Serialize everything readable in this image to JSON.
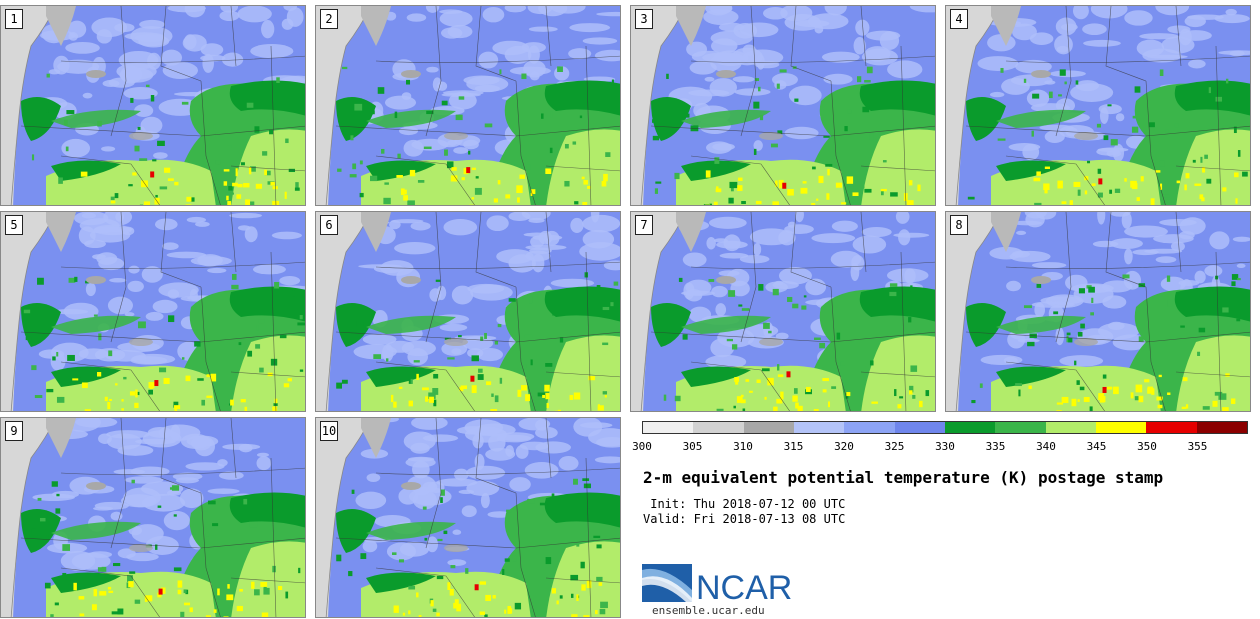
{
  "panels": [
    "1",
    "2",
    "3",
    "4",
    "5",
    "6",
    "7",
    "8",
    "9",
    "10"
  ],
  "colorbar": {
    "ticks": [
      "300",
      "305",
      "310",
      "315",
      "320",
      "325",
      "330",
      "335",
      "340",
      "345",
      "350",
      "355"
    ],
    "colors": [
      "#f0f0f0",
      "#d2d2d2",
      "#a8a8a8",
      "#b4c4f8",
      "#8da4f5",
      "#6f86ec",
      "#0a9b2c",
      "#3bb54a",
      "#b2ec6a",
      "#ffff00",
      "#e60000",
      "#8b0000"
    ]
  },
  "map_colors": {
    "ocean": "#d7d7d7",
    "land_blue": "#7a90f0",
    "land_light_blue": "#aebefa",
    "green_dark": "#0a9b2c",
    "green_mid": "#3bb54a",
    "green_light": "#b2ec6a",
    "yellow": "#ffff00",
    "red": "#e60000",
    "gray": "#a8a8a8"
  },
  "title": "2-m equivalent potential temperature (K) postage stamp",
  "init": " Init: Thu 2018-07-12 00 UTC",
  "valid": "Valid: Fri 2018-07-13 08 UTC",
  "logo": {
    "name": "NCAR",
    "url": "ensemble.ucar.edu"
  }
}
